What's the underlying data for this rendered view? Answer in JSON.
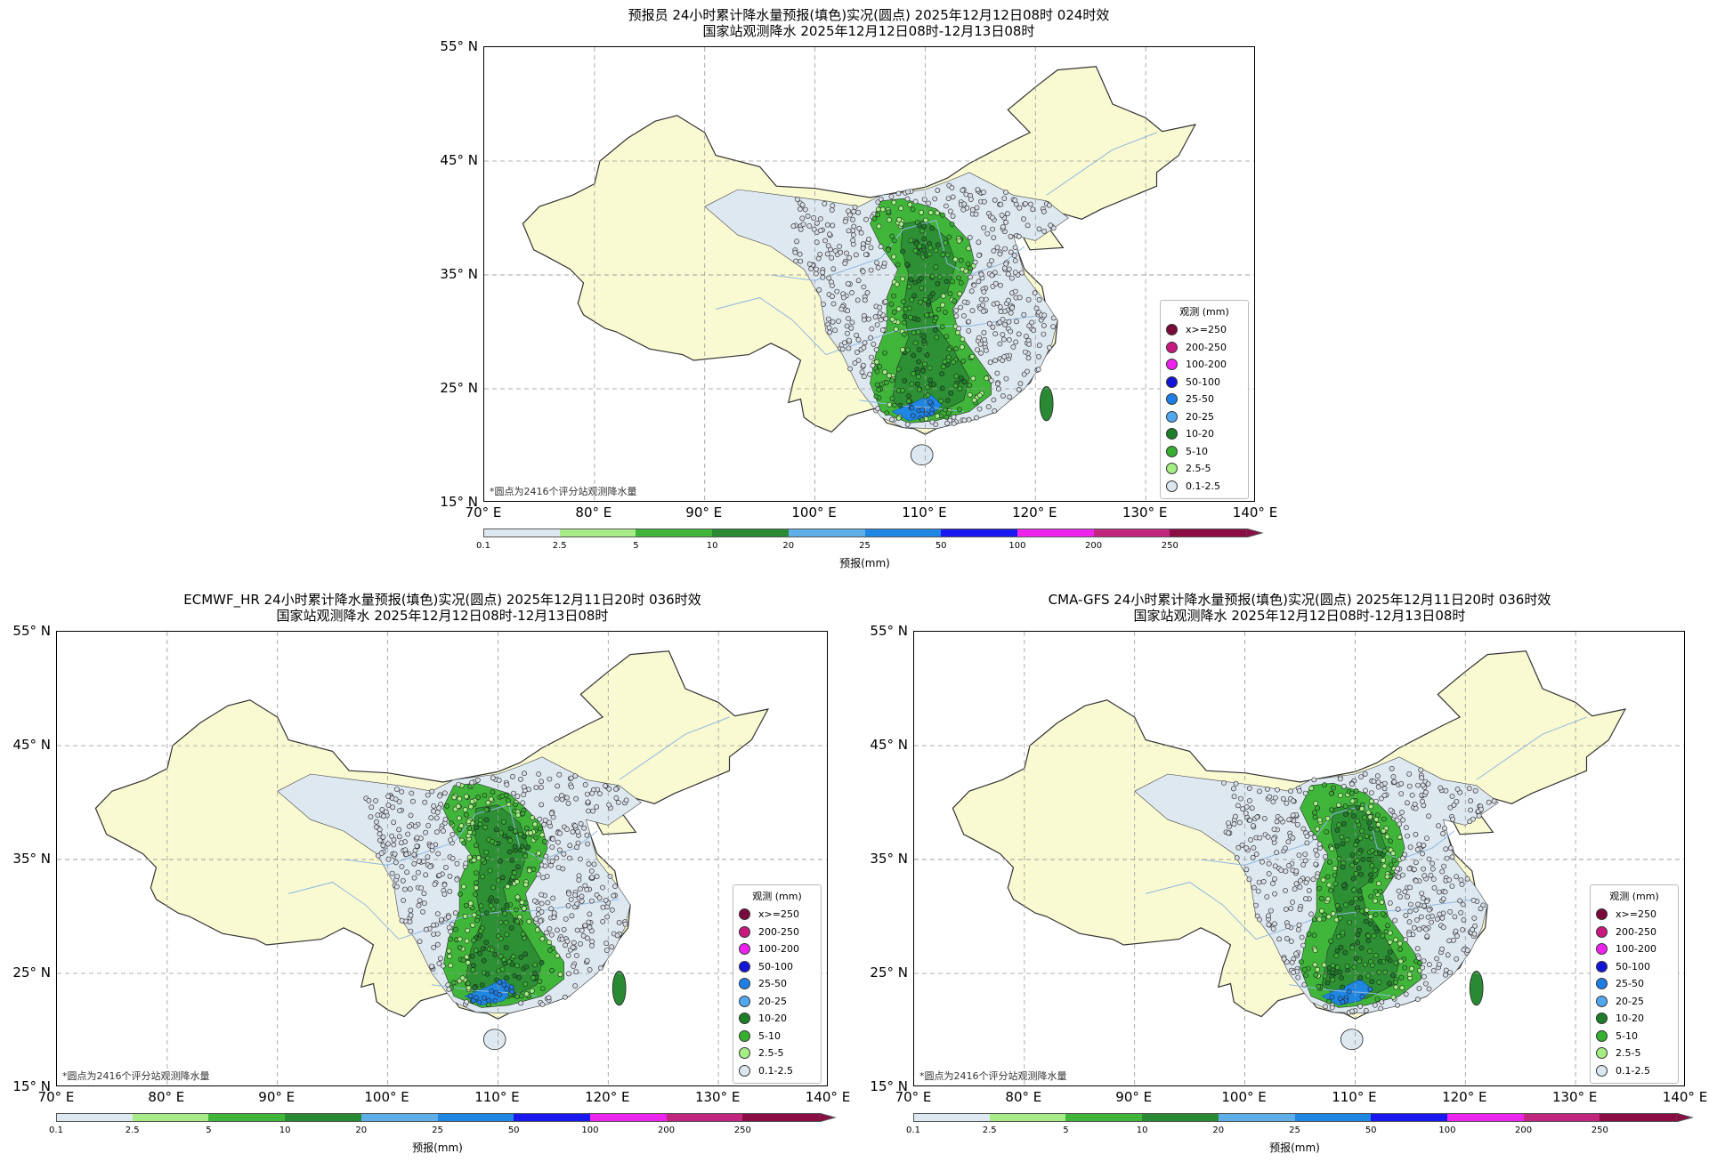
{
  "panels": [
    {
      "title_line1": "预报员 24小时累计降水量预报(填色)实况(圆点) 2025年12月12日08时 024时效",
      "title_line2": "国家站观测降水 2025年12月12日08时-12月13日08时"
    },
    {
      "title_line1": "ECMWF_HR 24小时累计降水量预报(填色)实况(圆点) 2025年12月11日20时 036时效",
      "title_line2": "国家站观测降水 2025年12月12日08时-12月13日08时"
    },
    {
      "title_line1": "CMA-GFS 24小时累计降水量预报(填色)实况(圆点) 2025年12月11日20时 036时效",
      "title_line2": "国家站观测降水 2025年12月12日08时-12月13日08时"
    }
  ],
  "axes": {
    "lat_labels": [
      "55° N",
      "45° N",
      "35° N",
      "25° N",
      "15° N"
    ],
    "lon_labels": [
      "70° E",
      "80° E",
      "90° E",
      "100° E",
      "110° E",
      "120° E",
      "130° E",
      "140° E"
    ]
  },
  "footnote": "*圆点为2416个评分站观测降水量",
  "legend": {
    "title": "观测 (mm)",
    "items": [
      {
        "label": "x>=250",
        "color": "#7a0a3c"
      },
      {
        "label": "200-250",
        "color": "#c8197e"
      },
      {
        "label": "100-200",
        "color": "#ee20ee"
      },
      {
        "label": "50-100",
        "color": "#1414d8"
      },
      {
        "label": "25-50",
        "color": "#1e7ee6"
      },
      {
        "label": "20-25",
        "color": "#52a8ef"
      },
      {
        "label": "10-20",
        "color": "#1e7d28"
      },
      {
        "label": "5-10",
        "color": "#37b032"
      },
      {
        "label": "2.5-5",
        "color": "#a4ee84"
      },
      {
        "label": "0.1-2.5",
        "color": "#dbe6ef"
      }
    ]
  },
  "colorbar": {
    "label": "预报(mm)",
    "ticks": [
      "0.1",
      "2.5",
      "5",
      "10",
      "20",
      "25",
      "50",
      "100",
      "200",
      "250"
    ],
    "colors": [
      "#dde8f0",
      "#a7ec88",
      "#3fb63a",
      "#2a8a34",
      "#5eaee8",
      "#1f86e3",
      "#1818ef",
      "#ec24ec",
      "#c0267e",
      "#8a0e44"
    ]
  },
  "map_colors": {
    "land": "#fafad2",
    "light_rain": "#dde8f0",
    "moderate_rain": "#3fb63a",
    "heavy_rain": "#2a8a34",
    "storm": "#1f86e3",
    "river": "#8fb8e0",
    "station": "#d8dde6"
  }
}
